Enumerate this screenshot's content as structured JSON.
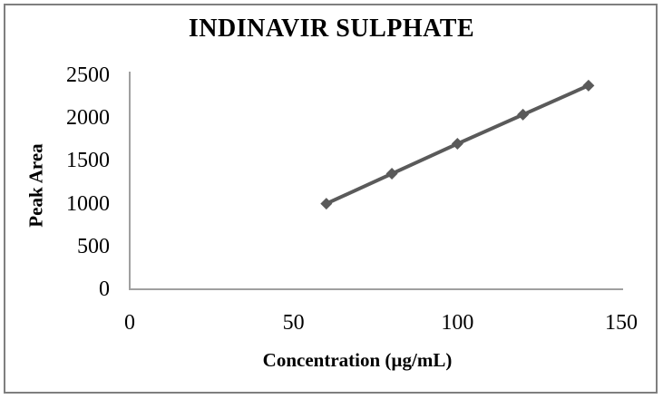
{
  "chart_data": {
    "type": "line",
    "title": "INDINAVIR SULPHATE",
    "xlabel": "Concentration (µg/mL)",
    "ylabel": "Peak Area",
    "x": [
      60,
      80,
      100,
      120,
      140
    ],
    "y": [
      1000,
      1350,
      1700,
      2040,
      2380
    ],
    "xlim": [
      0,
      150
    ],
    "ylim": [
      0,
      2500
    ],
    "xticks": [
      0,
      50,
      100,
      150
    ],
    "yticks": [
      0,
      500,
      1000,
      1500,
      2000,
      2500
    ],
    "grid": false,
    "legend": false,
    "marker": "diamond",
    "colors": {
      "series": "#5a5a5a",
      "axis": "#a0a0a0",
      "border": "#7f7f7f",
      "background": "#ffffff",
      "text": "#000000"
    }
  }
}
